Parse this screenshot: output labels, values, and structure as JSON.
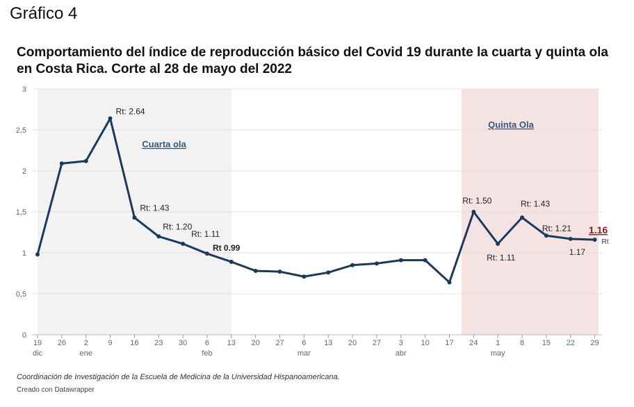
{
  "figure_label": "Gráfico 4",
  "caption": "Coordinación de Investigación de la Escuela de Medicina de la Universidad Hispanoamericana.",
  "credit": "Creado con Datawrapper",
  "chart_data": {
    "type": "line",
    "title": "Comportamiento del índice de reproducción básico del Covid 19 durante la cuarta y quinta ola en Costa Rica. Corte al 28 de mayo del 2022",
    "xlabel": "",
    "ylabel": "",
    "ylim": [
      0,
      3
    ],
    "yticks": [
      {
        "value": 0,
        "label": "0"
      },
      {
        "value": 0.5,
        "label": "0,5"
      },
      {
        "value": 1,
        "label": "1"
      },
      {
        "value": 1.5,
        "label": "1,5"
      },
      {
        "value": 2,
        "label": "2"
      },
      {
        "value": 2.5,
        "label": "2,5"
      },
      {
        "value": 3,
        "label": "3"
      }
    ],
    "x_ticks": [
      "19",
      "26",
      "2",
      "9",
      "16",
      "23",
      "30",
      "6",
      "13",
      "20",
      "27",
      "6",
      "13",
      "20",
      "27",
      "3",
      "10",
      "17",
      "24",
      "1",
      "8",
      "15",
      "22",
      "29"
    ],
    "month_labels": [
      {
        "index": 0,
        "label": "dic"
      },
      {
        "index": 2,
        "label": "ene"
      },
      {
        "index": 7,
        "label": "feb"
      },
      {
        "index": 11,
        "label": "mar"
      },
      {
        "index": 15,
        "label": "abr"
      },
      {
        "index": 19,
        "label": "may"
      }
    ],
    "grid": true,
    "legend": "none",
    "series": [
      {
        "values": [
          0.98,
          2.09,
          2.12,
          2.64,
          1.43,
          1.2,
          1.11,
          0.99,
          0.89,
          0.78,
          0.77,
          0.71,
          0.76,
          0.85,
          0.87,
          0.91,
          0.91,
          0.64,
          1.5,
          1.11,
          1.43,
          1.21,
          1.17,
          1.16
        ]
      }
    ],
    "shaded_regions": [
      {
        "label": "Cuarta ola",
        "from_index": 0,
        "to_index": 8,
        "color": "#f2f2f2"
      },
      {
        "label": "Quinta Ola",
        "from_index": 17.5,
        "to_index": 23.15,
        "color": "#f5e3e3"
      }
    ],
    "annotations": [
      {
        "index": 3,
        "text": "Rt: 2.64",
        "bold": false
      },
      {
        "index": 4,
        "text": "Rt: 1.43",
        "bold": false
      },
      {
        "index": 5,
        "text": "Rt: 1.20",
        "bold": false
      },
      {
        "index": 6,
        "text": "Rt: 1.11",
        "bold": false
      },
      {
        "index": 7,
        "text": "Rt 0.99",
        "bold": true
      },
      {
        "index": 18,
        "text": "Rt: 1.50",
        "bold": false
      },
      {
        "index": 19,
        "text": "Rt: 1.11",
        "bold": false
      },
      {
        "index": 20,
        "text": "Rt: 1.43",
        "bold": false
      },
      {
        "index": 21,
        "text": "Rt: 1.21",
        "bold": false
      },
      {
        "index": 22,
        "text": "1.17",
        "bold": false
      }
    ],
    "end_label": {
      "index": 23,
      "value": "1.16",
      "unit": "Rt"
    },
    "colors": {
      "line": "#1a3a5c",
      "grid": "#e0e0e0",
      "region_label": "#2d5b82",
      "end_label": "#8b1a1a",
      "axis_text": "#666666"
    }
  }
}
